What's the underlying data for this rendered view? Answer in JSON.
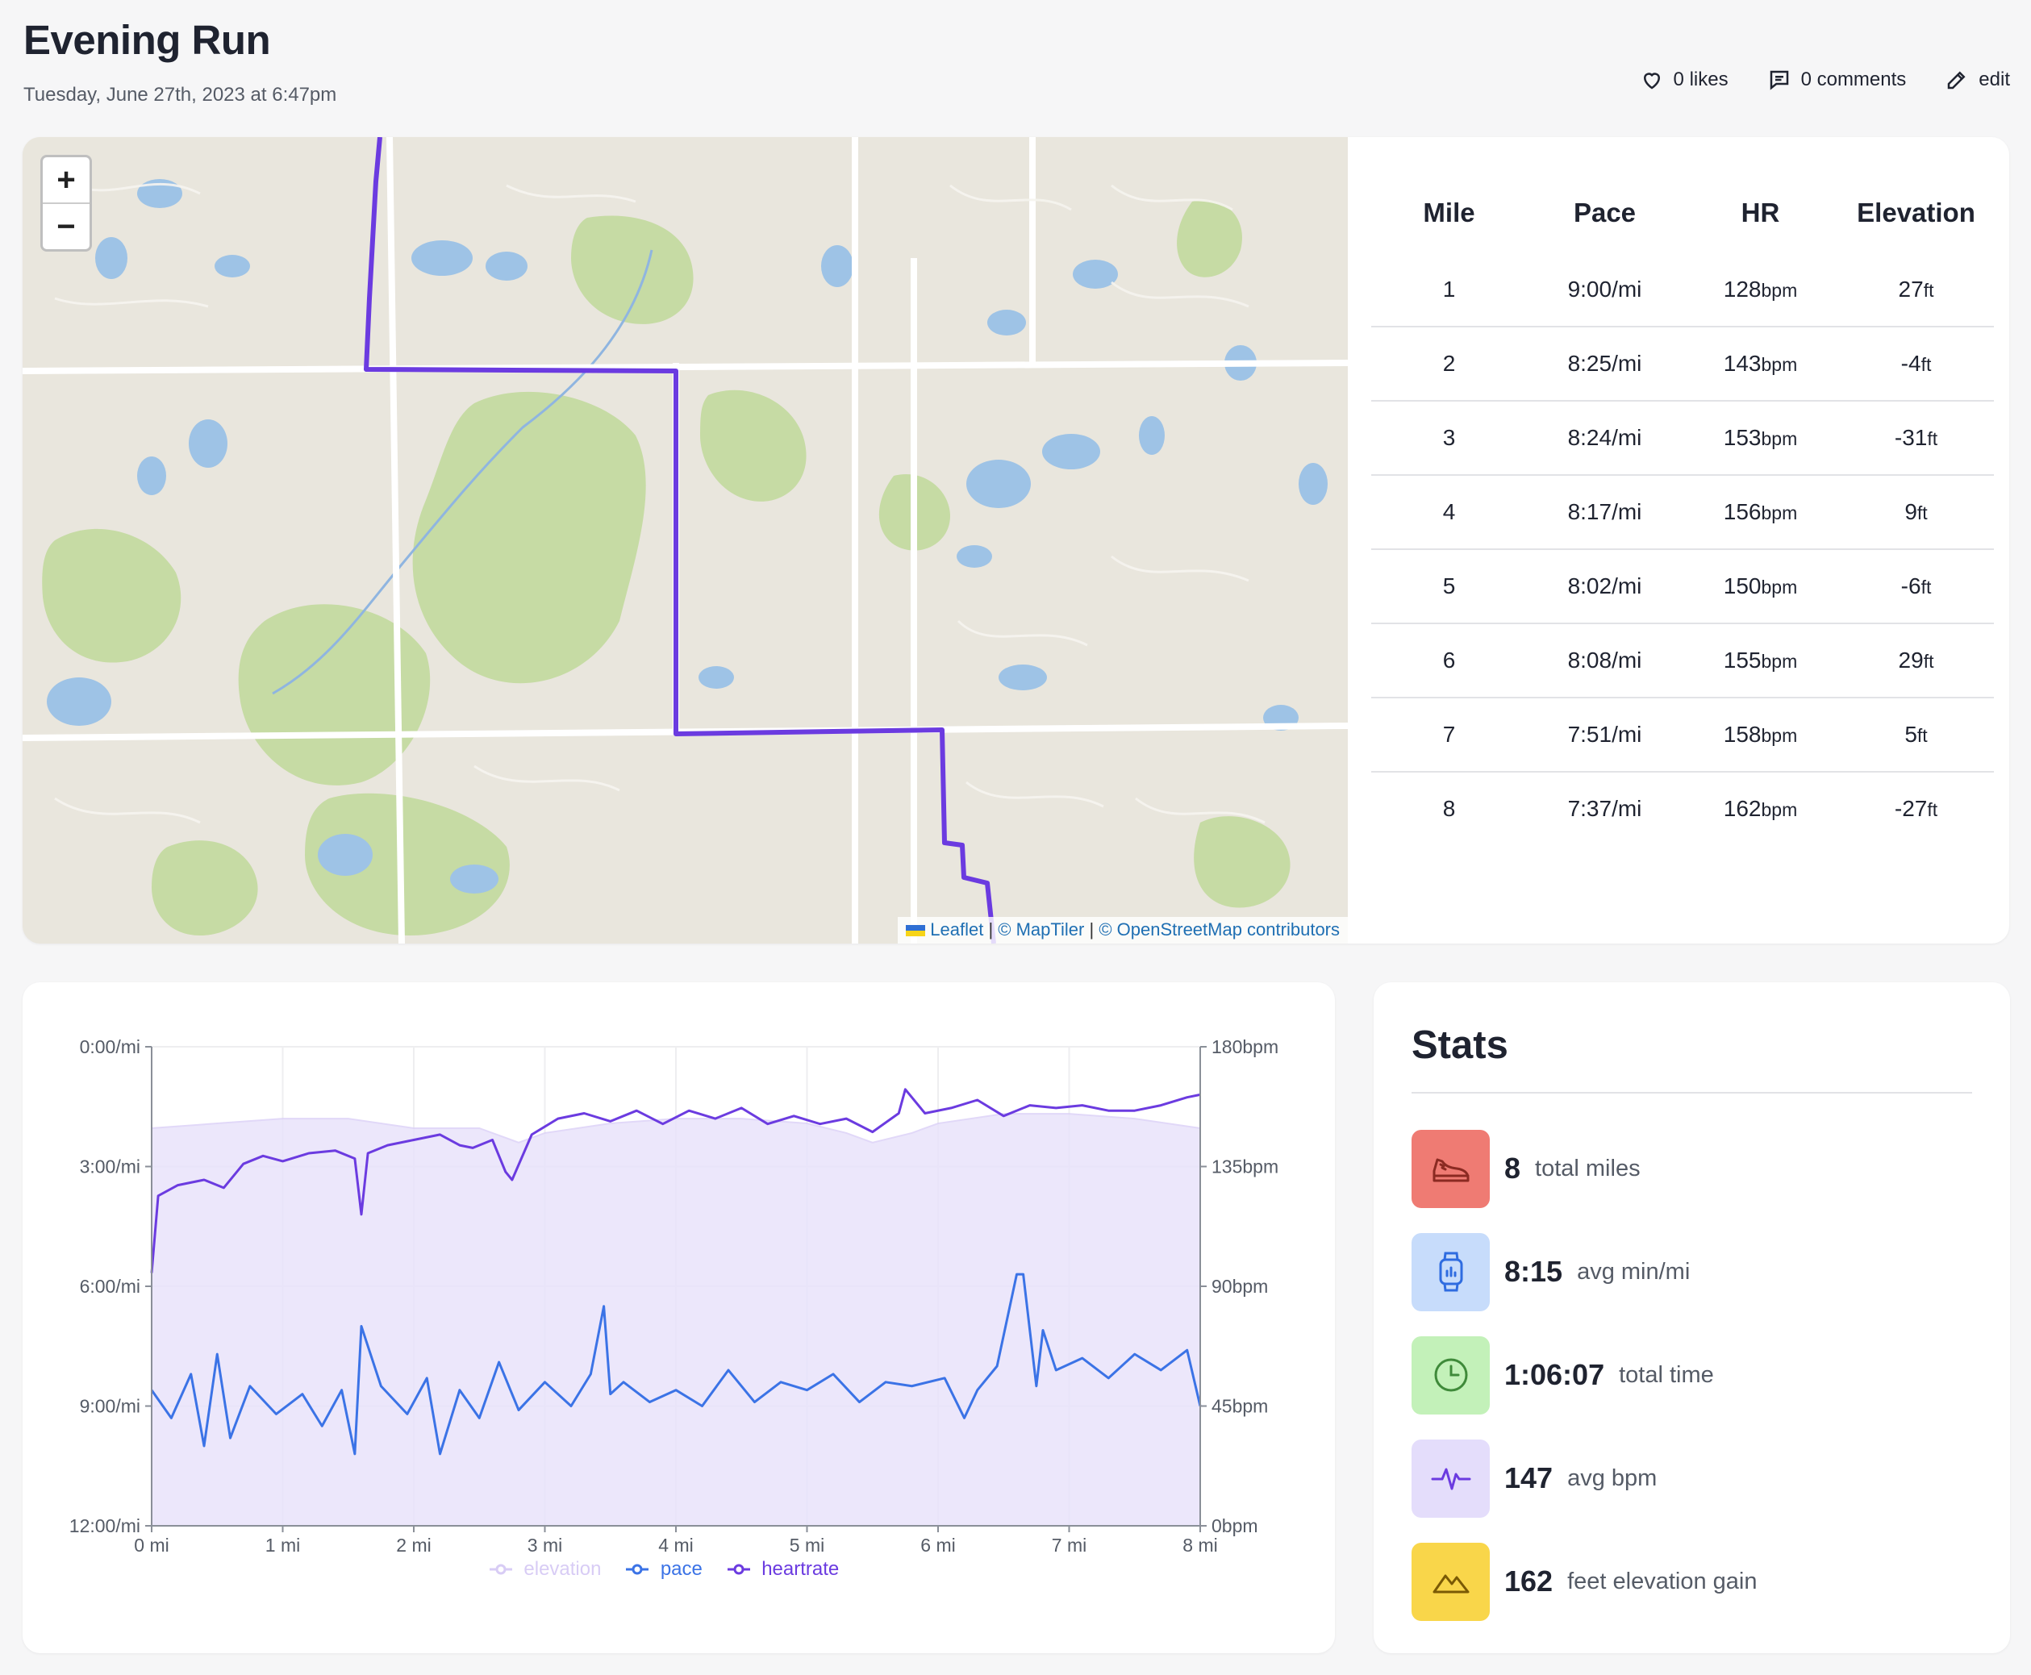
{
  "activity": {
    "title": "Evening Run",
    "datetime": "Tuesday, June 27th, 2023 at 6:47pm"
  },
  "actions": {
    "likes": "0 likes",
    "comments": "0 comments",
    "edit": "edit"
  },
  "map": {
    "zoom_in": "+",
    "zoom_out": "−",
    "attribution": {
      "leaflet": "Leaflet",
      "sep1": " | ",
      "maptiler": "© MapTiler",
      "sep2": " | ",
      "osm": "© OpenStreetMap contributors"
    },
    "route_color": "#6b3be0"
  },
  "splits": {
    "headers": [
      "Mile",
      "Pace",
      "HR",
      "Elevation"
    ],
    "rows": [
      {
        "mile": "1",
        "pace": "9:00/mi",
        "hr": "128",
        "hr_unit": "bpm",
        "elev": "27",
        "elev_unit": "ft"
      },
      {
        "mile": "2",
        "pace": "8:25/mi",
        "hr": "143",
        "hr_unit": "bpm",
        "elev": "-4",
        "elev_unit": "ft"
      },
      {
        "mile": "3",
        "pace": "8:24/mi",
        "hr": "153",
        "hr_unit": "bpm",
        "elev": "-31",
        "elev_unit": "ft"
      },
      {
        "mile": "4",
        "pace": "8:17/mi",
        "hr": "156",
        "hr_unit": "bpm",
        "elev": "9",
        "elev_unit": "ft"
      },
      {
        "mile": "5",
        "pace": "8:02/mi",
        "hr": "150",
        "hr_unit": "bpm",
        "elev": "-6",
        "elev_unit": "ft"
      },
      {
        "mile": "6",
        "pace": "8:08/mi",
        "hr": "155",
        "hr_unit": "bpm",
        "elev": "29",
        "elev_unit": "ft"
      },
      {
        "mile": "7",
        "pace": "7:51/mi",
        "hr": "158",
        "hr_unit": "bpm",
        "elev": "5",
        "elev_unit": "ft"
      },
      {
        "mile": "8",
        "pace": "7:37/mi",
        "hr": "162",
        "hr_unit": "bpm",
        "elev": "-27",
        "elev_unit": "ft"
      }
    ]
  },
  "stats": {
    "title": "Stats",
    "items": [
      {
        "value": "8",
        "label": "total miles",
        "icon": "shoe-icon",
        "bg": "#ef7b73",
        "fg": "#8b2a22"
      },
      {
        "value": "8:15",
        "label": "avg min/mi",
        "icon": "watch-icon",
        "bg": "#c7dcfb",
        "fg": "#2f6ce0"
      },
      {
        "value": "1:06:07",
        "label": "total time",
        "icon": "clock-icon",
        "bg": "#c3f1b9",
        "fg": "#3f8a3a"
      },
      {
        "value": "147",
        "label": "avg bpm",
        "icon": "pulse-icon",
        "bg": "#e4ddfb",
        "fg": "#6b3be0"
      },
      {
        "value": "162",
        "label": "feet elevation gain",
        "icon": "mountain-icon",
        "bg": "#f9d64a",
        "fg": "#7a5a05"
      }
    ]
  },
  "chart_data": {
    "type": "line",
    "x_ticks": [
      "0 mi",
      "1 mi",
      "2 mi",
      "3 mi",
      "4 mi",
      "5 mi",
      "6 mi",
      "7 mi",
      "8 mi"
    ],
    "xlim": [
      0,
      8
    ],
    "y_left": {
      "ticks": [
        "0:00/mi",
        "3:00/mi",
        "6:00/mi",
        "9:00/mi",
        "12:00/mi"
      ],
      "range_min_per_mi": [
        0,
        12
      ],
      "inverted": true
    },
    "y_right": {
      "ticks": [
        "180bpm",
        "135bpm",
        "90bpm",
        "45bpm",
        "0bpm"
      ],
      "range_bpm": [
        0,
        180
      ]
    },
    "legend": [
      "elevation",
      "pace",
      "heartrate"
    ],
    "colors": {
      "elevation": "#d8ccf5",
      "pace": "#3b73e6",
      "heartrate": "#6b3be0"
    },
    "series": [
      {
        "name": "heartrate",
        "axis": "right",
        "x": [
          0,
          0.05,
          0.2,
          0.4,
          0.55,
          0.7,
          0.85,
          1.0,
          1.2,
          1.4,
          1.55,
          1.6,
          1.65,
          1.8,
          2.0,
          2.2,
          2.35,
          2.45,
          2.6,
          2.7,
          2.75,
          2.9,
          3.1,
          3.3,
          3.5,
          3.7,
          3.9,
          4.1,
          4.3,
          4.5,
          4.7,
          4.9,
          5.1,
          5.3,
          5.5,
          5.7,
          5.75,
          5.9,
          6.1,
          6.3,
          6.5,
          6.7,
          6.9,
          7.1,
          7.3,
          7.5,
          7.7,
          7.9,
          8.0
        ],
        "values": [
          95,
          124,
          128,
          130,
          127,
          136,
          139,
          137,
          140,
          141,
          138,
          117,
          140,
          143,
          145,
          147,
          143,
          142,
          145,
          133,
          130,
          147,
          153,
          155,
          152,
          156,
          151,
          156,
          153,
          157,
          151,
          154,
          151,
          153,
          148,
          155,
          164,
          155,
          157,
          160,
          154,
          158,
          157,
          158,
          156,
          156,
          158,
          161,
          162
        ]
      },
      {
        "name": "pace",
        "axis": "left",
        "unit": "min/mi",
        "x": [
          0,
          0.15,
          0.3,
          0.4,
          0.5,
          0.6,
          0.75,
          0.95,
          1.15,
          1.3,
          1.45,
          1.55,
          1.6,
          1.75,
          1.95,
          2.1,
          2.2,
          2.35,
          2.5,
          2.65,
          2.8,
          3.0,
          3.2,
          3.35,
          3.45,
          3.5,
          3.6,
          3.8,
          4.0,
          4.2,
          4.4,
          4.6,
          4.8,
          5.0,
          5.2,
          5.4,
          5.6,
          5.8,
          6.05,
          6.2,
          6.3,
          6.45,
          6.6,
          6.65,
          6.75,
          6.8,
          6.9,
          7.1,
          7.3,
          7.5,
          7.7,
          7.9,
          8.0
        ],
        "values": [
          8.6,
          9.3,
          8.2,
          10.0,
          7.7,
          9.8,
          8.5,
          9.2,
          8.7,
          9.5,
          8.6,
          10.2,
          7.0,
          8.5,
          9.2,
          8.3,
          10.2,
          8.6,
          9.3,
          7.9,
          9.1,
          8.4,
          9.0,
          8.2,
          6.5,
          8.7,
          8.4,
          8.9,
          8.6,
          9.0,
          8.1,
          8.9,
          8.4,
          8.6,
          8.2,
          8.9,
          8.4,
          8.5,
          8.3,
          9.3,
          8.6,
          8.0,
          5.7,
          5.7,
          8.5,
          7.1,
          8.1,
          7.8,
          8.3,
          7.7,
          8.1,
          7.6,
          9.0
        ]
      },
      {
        "name": "elevation",
        "axis": "left",
        "shaded_area": true,
        "x": [
          0,
          0.5,
          1.0,
          1.5,
          2.0,
          2.5,
          2.8,
          3.0,
          3.5,
          4.0,
          4.5,
          5.0,
          5.3,
          5.5,
          5.8,
          6.0,
          6.5,
          7.0,
          7.5,
          8.0
        ],
        "relative_height_fraction": [
          0.83,
          0.84,
          0.85,
          0.85,
          0.83,
          0.83,
          0.8,
          0.82,
          0.84,
          0.85,
          0.85,
          0.84,
          0.82,
          0.8,
          0.82,
          0.84,
          0.86,
          0.86,
          0.85,
          0.83
        ]
      }
    ]
  }
}
